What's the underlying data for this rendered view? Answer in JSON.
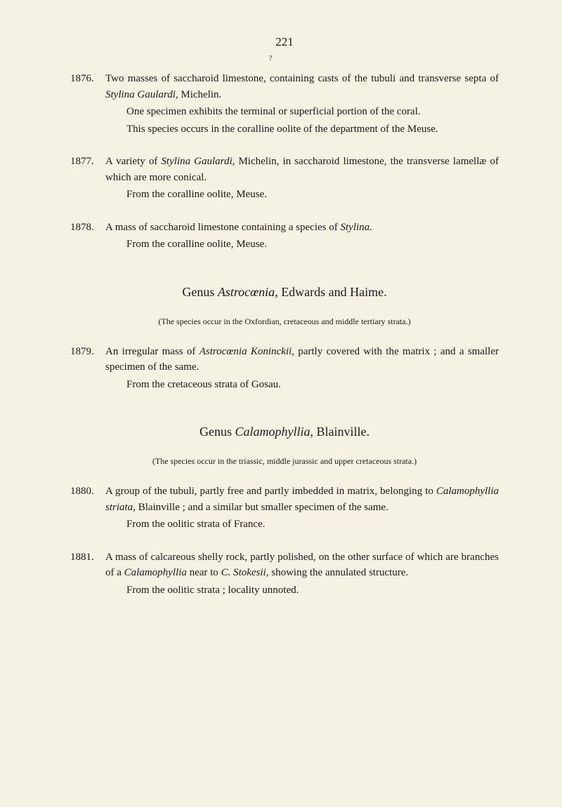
{
  "page_number": "221",
  "small_mark": "?",
  "entries": [
    {
      "num": "1876.",
      "main": "Two masses of saccharoid limestone, containing casts of the tubuli and transverse septa of <span class=\"italic\">Stylina Gaulardi,</span> Michelin.",
      "sub1": "One specimen exhibits the terminal or superficial portion of the coral.",
      "sub2": "This species occurs in the coralline oolite of the department of the Meuse."
    },
    {
      "num": "1877.",
      "main": "A variety of <span class=\"italic\">Stylina Gaulardi,</span> Michelin, in saccharoid limestone, the transverse lamellæ of which are more conical.",
      "sub1": "From the coralline oolite, Meuse."
    },
    {
      "num": "1878.",
      "main": "A mass of saccharoid limestone containing a species of <span class=\"italic\">Stylina.</span>",
      "sub1": "From the coralline oolite, Meuse."
    }
  ],
  "genus1": {
    "heading": "Genus <span class=\"italic\">Astrocœnia</span>, Edwards and Haime.",
    "note": "(The species occur in the Oxfordian, cretaceous and middle tertiary strata.)"
  },
  "entries2": [
    {
      "num": "1879.",
      "main": "An irregular mass of <span class=\"italic\">Astrocœnia Koninckii,</span> partly covered with the matrix ; and a smaller specimen of the same.",
      "sub1": "From the cretaceous strata of Gosau."
    }
  ],
  "genus2": {
    "heading": "Genus <span class=\"italic\">Calamophyllia</span>, Blainville.",
    "note": "(The species occur in the triassic, middle jurassic and upper cretaceous strata.)"
  },
  "entries3": [
    {
      "num": "1880.",
      "main": "A group of the tubuli, partly free and partly imbedded in matrix, belonging to <span class=\"italic\">Calamophyllia striata,</span> Blainville ; and a similar but smaller specimen of the same.",
      "sub1": "From the oolitic strata of France."
    },
    {
      "num": "1881.",
      "main": "A mass of calcareous shelly rock, partly polished, on the other surface of which are branches of a <span class=\"italic\">Calamophyllia</span> near to <span class=\"italic\">C. Stokesii,</span> showing the annulated structure.",
      "sub1": "From the oolitic strata ; locality unnoted."
    }
  ]
}
